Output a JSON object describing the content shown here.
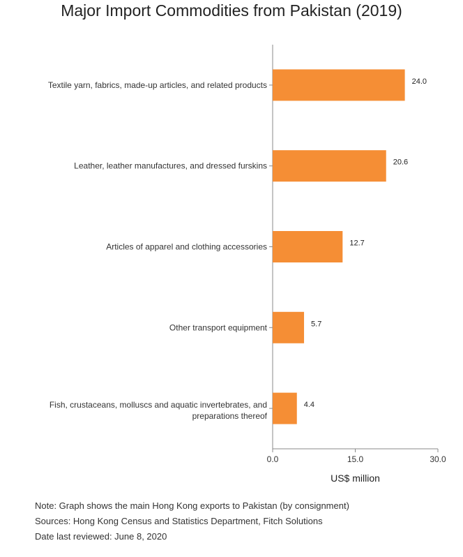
{
  "chart_data": {
    "type": "bar",
    "orientation": "horizontal",
    "title": "Major Import Commodities from Pakistan (2019)",
    "categories": [
      "Textile yarn, fabrics, made-up articles, and related products",
      "Leather, leather manufactures, and dressed furskins",
      "Articles of apparel and clothing accessories",
      "Other transport equipment",
      "Fish, crustaceans, molluscs and aquatic invertebrates, and preparations thereof"
    ],
    "values": [
      24.0,
      20.6,
      12.7,
      5.7,
      4.4
    ],
    "value_labels": [
      "24.0",
      "20.6",
      "12.7",
      "5.7",
      "4.4"
    ],
    "xlabel": "US$ million",
    "ylabel": "",
    "xlim": [
      0,
      30
    ],
    "xticks": [
      0,
      15,
      30
    ],
    "xtick_labels": [
      "0.0",
      "15.0",
      "30.0"
    ],
    "grid": false,
    "bar_color": "#f58e35",
    "axis_color": "#888888"
  },
  "notes": {
    "note": "Note: Graph shows the main Hong Kong exports to Pakistan (by consignment)",
    "sources": "Sources: Hong Kong Census and Statistics Department, Fitch Solutions",
    "reviewed": "Date last reviewed: June 8, 2020"
  }
}
